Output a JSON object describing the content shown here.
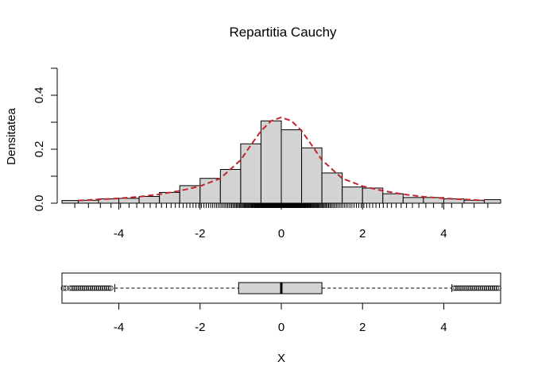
{
  "chart_data": [
    {
      "type": "histogram",
      "title": "Repartitia Cauchy",
      "xlabel": "",
      "ylabel": "Densitatea",
      "xlim": [
        -5.4,
        5.4
      ],
      "ylim": [
        0,
        0.5
      ],
      "x_ticks": [
        -4,
        -2,
        0,
        2,
        4
      ],
      "y_ticks": [
        0.0,
        0.2,
        0.4
      ],
      "y_tick_labels": [
        "0.0",
        "0.2",
        "0.4"
      ],
      "bins": [
        {
          "x0": -5.5,
          "x1": -5.0,
          "density": 0.01
        },
        {
          "x0": -5.0,
          "x1": -4.5,
          "density": 0.011
        },
        {
          "x0": -4.5,
          "x1": -4.0,
          "density": 0.016
        },
        {
          "x0": -4.0,
          "x1": -3.5,
          "density": 0.018
        },
        {
          "x0": -3.5,
          "x1": -3.0,
          "density": 0.025
        },
        {
          "x0": -3.0,
          "x1": -2.5,
          "density": 0.04
        },
        {
          "x0": -2.5,
          "x1": -2.0,
          "density": 0.065
        },
        {
          "x0": -2.0,
          "x1": -1.5,
          "density": 0.092
        },
        {
          "x0": -1.5,
          "x1": -1.0,
          "density": 0.125
        },
        {
          "x0": -1.0,
          "x1": -0.5,
          "density": 0.22
        },
        {
          "x0": -0.5,
          "x1": 0.0,
          "density": 0.305
        },
        {
          "x0": 0.0,
          "x1": 0.5,
          "density": 0.272
        },
        {
          "x0": 0.5,
          "x1": 1.0,
          "density": 0.205
        },
        {
          "x0": 1.0,
          "x1": 1.5,
          "density": 0.112
        },
        {
          "x0": 1.5,
          "x1": 2.0,
          "density": 0.06
        },
        {
          "x0": 2.0,
          "x1": 2.5,
          "density": 0.056
        },
        {
          "x0": 2.5,
          "x1": 3.0,
          "density": 0.035
        },
        {
          "x0": 3.0,
          "x1": 3.5,
          "density": 0.021
        },
        {
          "x0": 3.5,
          "x1": 4.0,
          "density": 0.021
        },
        {
          "x0": 4.0,
          "x1": 4.5,
          "density": 0.016
        },
        {
          "x0": 4.5,
          "x1": 5.0,
          "density": 0.011
        },
        {
          "x0": 5.0,
          "x1": 5.5,
          "density": 0.013
        }
      ],
      "density_curve": {
        "color": "#c0262d",
        "style": "dashed",
        "x": [
          -5.0,
          -4.5,
          -4.0,
          -3.5,
          -3.0,
          -2.5,
          -2.0,
          -1.5,
          -1.0,
          -0.75,
          -0.5,
          -0.25,
          0.0,
          0.25,
          0.5,
          0.75,
          1.0,
          1.5,
          2.0,
          2.5,
          3.0,
          3.5,
          4.0,
          4.5,
          5.0
        ],
        "y": [
          0.01,
          0.014,
          0.018,
          0.024,
          0.033,
          0.046,
          0.063,
          0.092,
          0.16,
          0.215,
          0.268,
          0.305,
          0.318,
          0.305,
          0.268,
          0.215,
          0.16,
          0.092,
          0.063,
          0.046,
          0.033,
          0.024,
          0.018,
          0.014,
          0.01
        ]
      },
      "rug": true,
      "bar_fill": "#d3d3d3"
    },
    {
      "type": "boxplot",
      "orientation": "horizontal",
      "xlabel": "X",
      "xlim": [
        -5.4,
        5.4
      ],
      "x_ticks": [
        -4,
        -2,
        0,
        2,
        4
      ],
      "min_whisker": -4.1,
      "q1": -1.05,
      "median": 0.0,
      "q3": 1.0,
      "max_whisker": 4.2,
      "outliers_low": [
        -5.3,
        -5.2,
        -5.15,
        -5.1,
        -5.05,
        -5.0,
        -4.95,
        -4.9,
        -4.85,
        -4.8,
        -4.75,
        -4.7,
        -4.65,
        -4.6,
        -4.55,
        -4.5,
        -4.45,
        -4.4,
        -4.35,
        -4.3,
        -4.25,
        -4.2
      ],
      "outliers_high": [
        4.25,
        4.3,
        4.35,
        4.4,
        4.45,
        4.5,
        4.55,
        4.6,
        4.65,
        4.7,
        4.75,
        4.8,
        4.85,
        4.9,
        4.95,
        5.0,
        5.05,
        5.1,
        5.15,
        5.2,
        5.25,
        5.3,
        5.35
      ],
      "box_fill": "#d3d3d3"
    }
  ]
}
